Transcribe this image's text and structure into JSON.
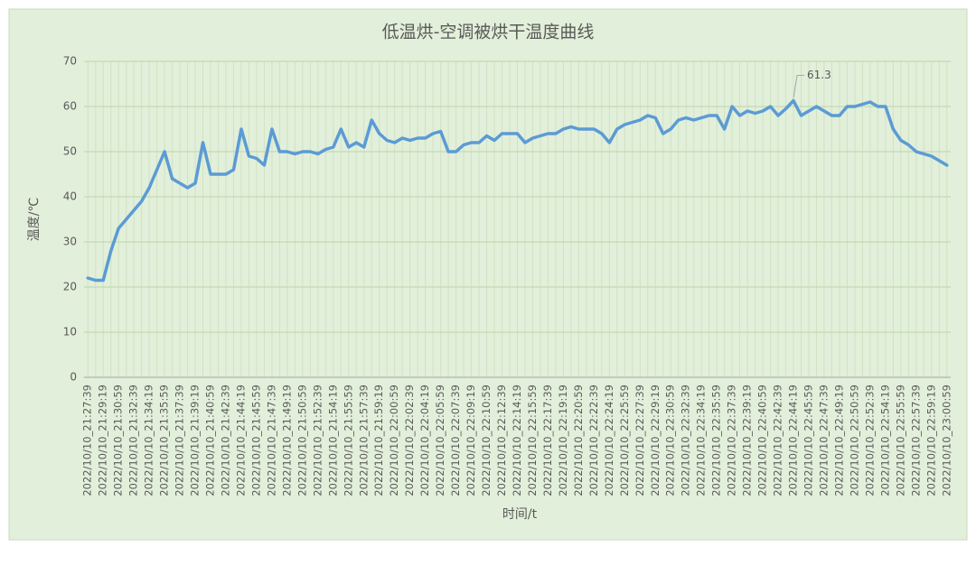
{
  "chart_data": {
    "type": "line",
    "title": "低温烘-空调被烘干温度曲线",
    "x_label": "时间/t",
    "y_label": "温度/℃",
    "categories": [
      "2022/10/10_21:27:39",
      null,
      "2022/10/10_21:29:19",
      null,
      "2022/10/10_21:30:59",
      null,
      "2022/10/10_21:32:39",
      null,
      "2022/10/10_21:34:19",
      null,
      "2022/10/10_21:35:59",
      null,
      "2022/10/10_21:37:39",
      null,
      "2022/10/10_21:39:19",
      null,
      "2022/10/10_21:40:59",
      null,
      "2022/10/10_21:42:39",
      null,
      "2022/10/10_21:44:19",
      null,
      "2022/10/10_21:45:59",
      null,
      "2022/10/10_21:47:39",
      null,
      "2022/10/10_21:49:19",
      null,
      "2022/10/10_21:50:59",
      null,
      "2022/10/10_21:52:39",
      null,
      "2022/10/10_21:54:19",
      null,
      "2022/10/10_21:55:59",
      null,
      "2022/10/10_21:57:39",
      null,
      "2022/10/10_21:59:19",
      null,
      "2022/10/10_22:00:59",
      null,
      "2022/10/10_22:02:39",
      null,
      "2022/10/10_22:04:19",
      null,
      "2022/10/10_22:05:59",
      null,
      "2022/10/10_22:07:39",
      null,
      "2022/10/10_22:09:19",
      null,
      "2022/10/10_22:10:59",
      null,
      "2022/10/10_22:12:39",
      null,
      "2022/10/10_22:14:19",
      null,
      "2022/10/10_22:15:59",
      null,
      "2022/10/10_22:17:39",
      null,
      "2022/10/10_22:19:19",
      null,
      "2022/10/10_22:20:59",
      null,
      "2022/10/10_22:22:39",
      null,
      "2022/10/10_22:24:19",
      null,
      "2022/10/10_22:25:59",
      null,
      "2022/10/10_22:27:39",
      null,
      "2022/10/10_22:29:19",
      null,
      "2022/10/10_22:30:59",
      null,
      "2022/10/10_22:32:39",
      null,
      "2022/10/10_22:34:19",
      null,
      "2022/10/10_22:35:59",
      null,
      "2022/10/10_22:37:39",
      null,
      "2022/10/10_22:39:19",
      null,
      "2022/10/10_22:40:59",
      null,
      "2022/10/10_22:42:39",
      null,
      "2022/10/10_22:44:19",
      null,
      "2022/10/10_22:45:59",
      null,
      "2022/10/10_22:47:39",
      null,
      "2022/10/10_22:49:19",
      null,
      "2022/10/10_22:50:59",
      null,
      "2022/10/10_22:52:39",
      null,
      "2022/10/10_22:54:19",
      null,
      "2022/10/10_22:55:59",
      null,
      "2022/10/10_22:57:39",
      null,
      "2022/10/10_22:59:19",
      null,
      "2022/10/10_23:00:59"
    ],
    "values": [
      22,
      21.5,
      21.5,
      28,
      33,
      35,
      37,
      39,
      42,
      46,
      50,
      44,
      43,
      42,
      43,
      52,
      45,
      45,
      45,
      46,
      55,
      49,
      48.5,
      47,
      55,
      50,
      50,
      49.5,
      50,
      50,
      49.5,
      50.5,
      51,
      55,
      51,
      52,
      51,
      57,
      54,
      52.5,
      52,
      53,
      52.5,
      53,
      53,
      54,
      54.5,
      50,
      50,
      51.5,
      52,
      52,
      53.5,
      52.5,
      54,
      54,
      54,
      52,
      53,
      53.5,
      54,
      54,
      55,
      55.5,
      55,
      55,
      55,
      54,
      52,
      55,
      56,
      56.5,
      57,
      58,
      57.5,
      54,
      55,
      57,
      57.5,
      57,
      57.5,
      58,
      58,
      55,
      60,
      58,
      59,
      58.5,
      59,
      60,
      58,
      59.5,
      61.3,
      58,
      59,
      60,
      59,
      58,
      58,
      60,
      60,
      60.5,
      61,
      60,
      60,
      55,
      52.5,
      51.5,
      50,
      49.5,
      49,
      48,
      47
    ],
    "value_labels": [
      null,
      null,
      null,
      null,
      null,
      null,
      null,
      null,
      null,
      null,
      null,
      null,
      null,
      null,
      null,
      null,
      null,
      null,
      null,
      null,
      null,
      null,
      null,
      null,
      null,
      null,
      null,
      null,
      null,
      null,
      null,
      null,
      null,
      null,
      null,
      null,
      null,
      null,
      null,
      null,
      null,
      null,
      null,
      null,
      null,
      null,
      null,
      null,
      null,
      null,
      null,
      null,
      null,
      null,
      null,
      null,
      null,
      null,
      null,
      null,
      null,
      null,
      null,
      null,
      null,
      null,
      null,
      null,
      null,
      null,
      null,
      null,
      null,
      null,
      null,
      null,
      null,
      null,
      null,
      null,
      null,
      null,
      null,
      null,
      null,
      null,
      null,
      null,
      null,
      null,
      null,
      null,
      "61.3",
      null,
      null,
      null,
      null,
      null,
      null,
      null,
      null,
      null,
      null,
      null,
      null,
      null,
      null,
      null,
      null,
      null,
      null,
      null,
      null
    ],
    "color": "#5b9bd5",
    "ylim": [
      0,
      70
    ],
    "yticks": [
      0,
      10,
      20,
      30,
      40,
      50,
      60,
      70
    ],
    "grid": true
  }
}
